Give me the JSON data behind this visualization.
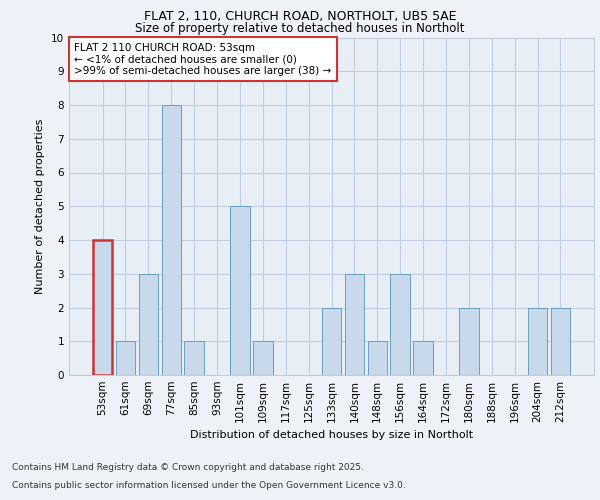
{
  "title1": "FLAT 2, 110, CHURCH ROAD, NORTHOLT, UB5 5AE",
  "title2": "Size of property relative to detached houses in Northolt",
  "xlabel": "Distribution of detached houses by size in Northolt",
  "ylabel": "Number of detached properties",
  "categories": [
    "53sqm",
    "61sqm",
    "69sqm",
    "77sqm",
    "85sqm",
    "93sqm",
    "101sqm",
    "109sqm",
    "117sqm",
    "125sqm",
    "133sqm",
    "140sqm",
    "148sqm",
    "156sqm",
    "164sqm",
    "172sqm",
    "180sqm",
    "188sqm",
    "196sqm",
    "204sqm",
    "212sqm"
  ],
  "values": [
    4,
    1,
    3,
    8,
    1,
    0,
    5,
    1,
    0,
    0,
    2,
    3,
    1,
    3,
    1,
    0,
    2,
    0,
    0,
    2,
    2
  ],
  "bar_color": "#c9d9ec",
  "bar_edge_color": "#6a9fc0",
  "highlight_index": 0,
  "highlight_color": "#cc3333",
  "annotation_text": "FLAT 2 110 CHURCH ROAD: 53sqm\n← <1% of detached houses are smaller (0)\n>99% of semi-detached houses are larger (38) →",
  "ylim": [
    0,
    10
  ],
  "yticks": [
    0,
    1,
    2,
    3,
    4,
    5,
    6,
    7,
    8,
    9,
    10
  ],
  "footnote1": "Contains HM Land Registry data © Crown copyright and database right 2025.",
  "footnote2": "Contains public sector information licensed under the Open Government Licence v3.0.",
  "bg_color": "#eef2f8",
  "plot_bg_color": "#e8eef6",
  "grid_color": "#c0cce0"
}
